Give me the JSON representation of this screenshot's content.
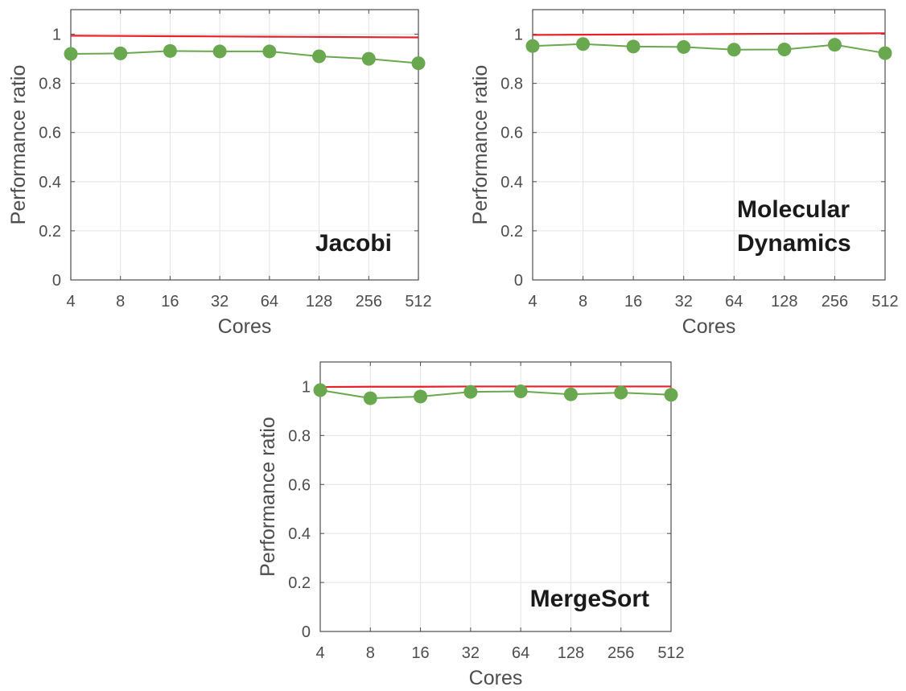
{
  "chart_data": [
    {
      "type": "line",
      "annotation": [
        "Jacobi"
      ],
      "xlabel": "Cores",
      "ylabel": "Performance ratio",
      "categories": [
        "4",
        "8",
        "16",
        "32",
        "64",
        "128",
        "256",
        "512"
      ],
      "ylim": [
        0,
        1.1
      ],
      "yticks": [
        "0",
        "0.2",
        "0.4",
        "0.6",
        "0.8",
        "1"
      ],
      "grid": true,
      "series": [
        {
          "values": [
            0.994,
            0.993,
            0.992,
            0.991,
            0.99,
            0.989,
            0.988,
            0.987
          ],
          "color": "#e8202a",
          "markers": false
        },
        {
          "values": [
            0.92,
            0.922,
            0.932,
            0.93,
            0.93,
            0.91,
            0.9,
            0.882
          ],
          "color": "#6aa84f",
          "markers": true
        }
      ]
    },
    {
      "type": "line",
      "annotation": [
        "Molecular",
        "Dynamics"
      ],
      "xlabel": "Cores",
      "ylabel": "Performance ratio",
      "categories": [
        "4",
        "8",
        "16",
        "32",
        "64",
        "128",
        "256",
        "512"
      ],
      "ylim": [
        0,
        1.1
      ],
      "yticks": [
        "0",
        "0.2",
        "0.4",
        "0.6",
        "0.8",
        "1"
      ],
      "grid": true,
      "series": [
        {
          "values": [
            0.997,
            0.998,
            0.999,
            1.0,
            1.001,
            1.002,
            1.003,
            1.004
          ],
          "color": "#e8202a",
          "markers": false
        },
        {
          "values": [
            0.952,
            0.96,
            0.95,
            0.948,
            0.937,
            0.938,
            0.957,
            0.923
          ],
          "color": "#6aa84f",
          "markers": true
        }
      ]
    },
    {
      "type": "line",
      "annotation": [
        "MergeSort"
      ],
      "xlabel": "Cores",
      "ylabel": "Performance ratio",
      "categories": [
        "4",
        "8",
        "16",
        "32",
        "64",
        "128",
        "256",
        "512"
      ],
      "ylim": [
        0,
        1.1
      ],
      "yticks": [
        "0",
        "0.2",
        "0.4",
        "0.6",
        "0.8",
        "1"
      ],
      "grid": true,
      "series": [
        {
          "values": [
            0.998,
            0.999,
            0.999,
            1.0,
            1.0,
            1.0,
            1.0,
            1.0
          ],
          "color": "#e8202a",
          "markers": false
        },
        {
          "values": [
            0.985,
            0.952,
            0.959,
            0.978,
            0.98,
            0.968,
            0.975,
            0.966
          ],
          "color": "#6aa84f",
          "markers": true
        }
      ]
    }
  ]
}
